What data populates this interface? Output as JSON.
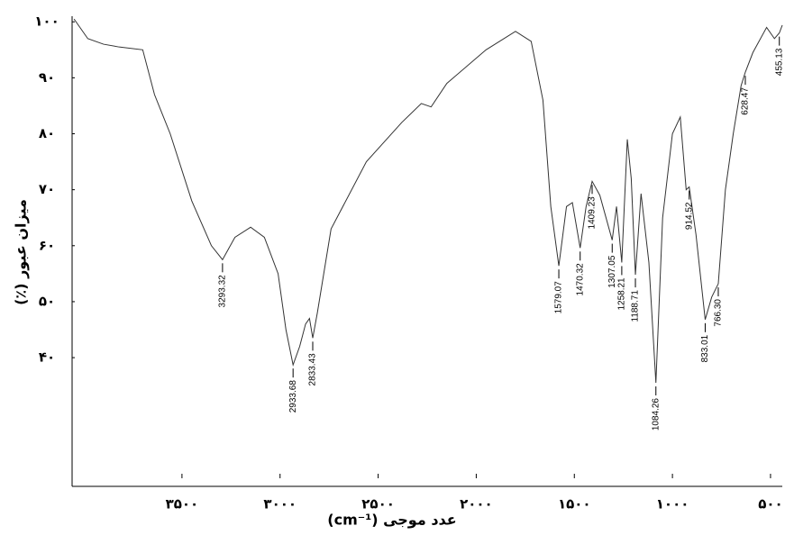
{
  "chart_data": {
    "type": "line",
    "xlabel": "عدد موجی (cm⁻¹)",
    "ylabel": "میزان عبور (٪)",
    "xlim": [
      4060,
      440
    ],
    "ylim": [
      17,
      101
    ],
    "xticks": [
      {
        "value": 3500,
        "label": "۳۵۰۰"
      },
      {
        "value": 3000,
        "label": "۳۰۰۰"
      },
      {
        "value": 2500,
        "label": "۲۵۰۰"
      },
      {
        "value": 2000,
        "label": "۲۰۰۰"
      },
      {
        "value": 1500,
        "label": "۱۵۰۰"
      },
      {
        "value": 1000,
        "label": "۱۰۰۰"
      },
      {
        "value": 500,
        "label": "۵۰۰"
      }
    ],
    "yticks": [
      {
        "value": 100,
        "label": "۱۰۰"
      },
      {
        "value": 90,
        "label": "۹۰"
      },
      {
        "value": 80,
        "label": "۸۰"
      },
      {
        "value": 70,
        "label": "۷۰"
      },
      {
        "value": 60,
        "label": "۶۰"
      },
      {
        "value": 50,
        "label": "۵۰"
      },
      {
        "value": 40,
        "label": "۴۰"
      }
    ],
    "x": [
      4050,
      3980,
      3900,
      3820,
      3700,
      3640,
      3560,
      3450,
      3350,
      3293.32,
      3230,
      3150,
      3080,
      3010,
      2970,
      2933.68,
      2900,
      2870,
      2850,
      2833.43,
      2810,
      2740,
      2560,
      2380,
      2280,
      2230,
      2150,
      1950,
      1800,
      1720,
      1660,
      1620,
      1579.07,
      1540,
      1510,
      1470.32,
      1440,
      1409.23,
      1370,
      1307.05,
      1285,
      1258.21,
      1230,
      1210,
      1188.71,
      1160,
      1120,
      1084.26,
      1050,
      1000,
      960,
      930,
      914.52,
      880,
      833.01,
      800,
      766.3,
      730,
      690,
      650,
      628.47,
      590,
      520,
      480,
      455.13,
      440
    ],
    "series": [
      {
        "color": "#333333",
        "values": [
          100.5,
          97,
          96,
          95.5,
          95,
          87,
          80,
          68,
          60,
          57.5,
          61.5,
          63.3,
          61.5,
          55,
          45,
          38.7,
          42,
          46,
          47,
          43.5,
          48,
          63,
          75,
          82,
          85.4,
          84.8,
          89,
          95,
          98.3,
          96.5,
          86,
          67,
          56.4,
          67,
          67.7,
          59.6,
          67,
          71.5,
          69,
          61,
          67,
          57,
          79,
          72,
          54.8,
          69.3,
          57,
          35.5,
          65,
          80,
          83,
          70,
          70.5,
          62,
          46.8,
          50.8,
          53.2,
          70,
          80,
          88.6,
          91,
          94.5,
          99,
          97,
          98,
          99.4
        ]
      }
    ],
    "annotations": [
      3293.32,
      2933.68,
      2833.43,
      1579.07,
      1470.32,
      1409.23,
      1307.05,
      1258.21,
      1188.71,
      1084.26,
      914.52,
      833.01,
      {
        "value": 766.3,
        "label": "766.30"
      },
      628.47,
      455.13
    ]
  }
}
